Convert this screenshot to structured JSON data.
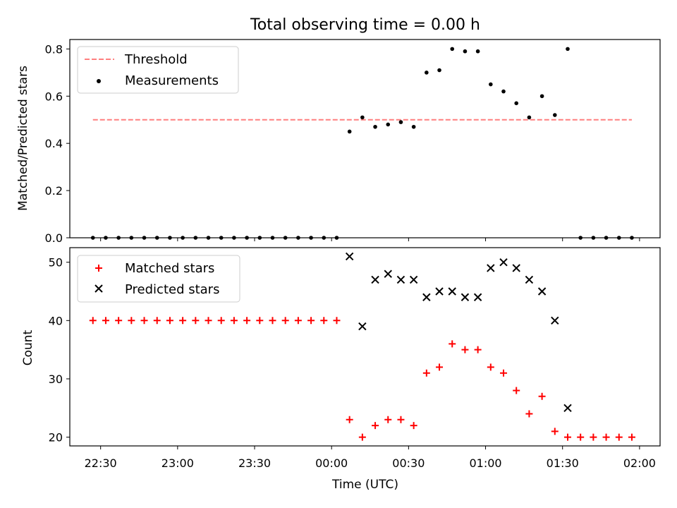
{
  "chart_data": [
    {
      "type": "scatter",
      "title": "Total observing time = 0.00 h",
      "ylabel": "Matched/Predicted stars",
      "xlabel": "",
      "ylim": [
        0,
        0.84
      ],
      "y_ticks": [
        "0.0",
        "0.2",
        "0.4",
        "0.6",
        "0.8"
      ],
      "legend_position": "top-left",
      "threshold": {
        "name": "Threshold",
        "value": 0.5,
        "x_start": "22:27",
        "x_end": "01:57",
        "color": "#ff7f7f"
      },
      "series": [
        {
          "name": "Measurements",
          "color": "#000000",
          "x": [
            "22:27",
            "22:32",
            "22:37",
            "22:42",
            "22:47",
            "22:52",
            "22:57",
            "23:02",
            "23:07",
            "23:12",
            "23:17",
            "23:22",
            "23:27",
            "23:32",
            "23:37",
            "23:42",
            "23:47",
            "23:52",
            "23:57",
            "00:02",
            "00:07",
            "00:12",
            "00:17",
            "00:22",
            "00:27",
            "00:32",
            "00:37",
            "00:42",
            "00:47",
            "00:52",
            "00:57",
            "01:02",
            "01:07",
            "01:12",
            "01:17",
            "01:22",
            "01:27",
            "01:32",
            "01:37",
            "01:42",
            "01:47",
            "01:52",
            "01:57"
          ],
          "y": [
            0,
            0,
            0,
            0,
            0,
            0,
            0,
            0,
            0,
            0,
            0,
            0,
            0,
            0,
            0,
            0,
            0,
            0,
            0,
            0,
            0.45,
            0.51,
            0.47,
            0.48,
            0.49,
            0.47,
            0.7,
            0.71,
            0.8,
            0.79,
            0.79,
            0.65,
            0.62,
            0.57,
            0.51,
            0.6,
            0.52,
            0.8,
            0,
            0,
            0,
            0,
            0
          ]
        }
      ]
    },
    {
      "type": "scatter",
      "title": "",
      "ylabel": "Count",
      "xlabel": "Time (UTC)",
      "ylim": [
        18.5,
        52.5
      ],
      "y_ticks": [
        "20",
        "30",
        "40",
        "50"
      ],
      "x_ticks": [
        "22:30",
        "23:00",
        "23:30",
        "00:00",
        "00:30",
        "01:00",
        "01:30",
        "02:00"
      ],
      "legend_position": "top-left",
      "series": [
        {
          "name": "Matched stars",
          "marker": "+",
          "color": "#ff0000",
          "x": [
            "22:27",
            "22:32",
            "22:37",
            "22:42",
            "22:47",
            "22:52",
            "22:57",
            "23:02",
            "23:07",
            "23:12",
            "23:17",
            "23:22",
            "23:27",
            "23:32",
            "23:37",
            "23:42",
            "23:47",
            "23:52",
            "23:57",
            "00:02",
            "00:07",
            "00:12",
            "00:17",
            "00:22",
            "00:27",
            "00:32",
            "00:37",
            "00:42",
            "00:47",
            "00:52",
            "00:57",
            "01:02",
            "01:07",
            "01:12",
            "01:17",
            "01:22",
            "01:27",
            "01:32",
            "01:37",
            "01:42",
            "01:47",
            "01:52",
            "01:57"
          ],
          "y": [
            40,
            40,
            40,
            40,
            40,
            40,
            40,
            40,
            40,
            40,
            40,
            40,
            40,
            40,
            40,
            40,
            40,
            40,
            40,
            40,
            23,
            20,
            22,
            23,
            23,
            22,
            31,
            32,
            36,
            35,
            35,
            32,
            31,
            28,
            24,
            27,
            21,
            20,
            20,
            20,
            20,
            20,
            20
          ]
        },
        {
          "name": "Predicted stars",
          "marker": "x",
          "color": "#000000",
          "x": [
            "00:07",
            "00:12",
            "00:17",
            "00:22",
            "00:27",
            "00:32",
            "00:37",
            "00:42",
            "00:47",
            "00:52",
            "00:57",
            "01:02",
            "01:07",
            "01:12",
            "01:17",
            "01:22",
            "01:27",
            "01:32"
          ],
          "y": [
            51,
            39,
            47,
            48,
            47,
            47,
            44,
            45,
            45,
            44,
            44,
            49,
            50,
            49,
            47,
            45,
            40,
            25
          ]
        }
      ]
    }
  ]
}
